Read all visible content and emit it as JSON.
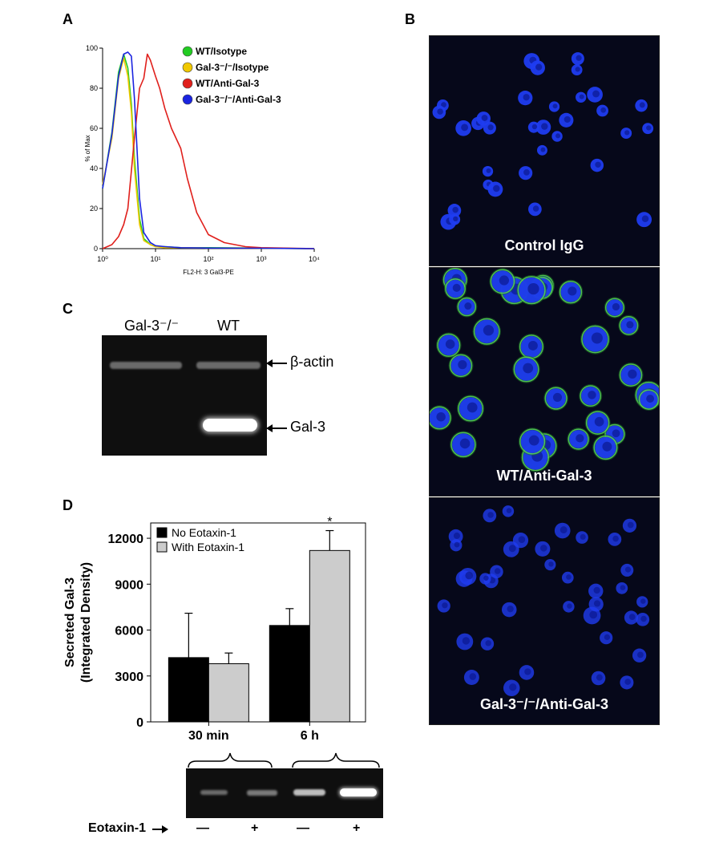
{
  "panels": {
    "a": {
      "label": "A",
      "chart_data": {
        "type": "line",
        "xlabel": "FL2-H: 3 Gal3-PE",
        "ylabel": "% of Max",
        "xscale": "log",
        "xlim": [
          1,
          10000
        ],
        "ylim": [
          0,
          100
        ],
        "x_tick_labels": [
          "10⁰",
          "10¹",
          "10²",
          "10³",
          "10⁴"
        ],
        "y_tick_labels": [
          "0",
          "20",
          "40",
          "60",
          "80",
          "100"
        ],
        "legend_position": "top-right",
        "series": [
          {
            "name": "WT/Isotype",
            "color": "#22cc22",
            "x": [
              1,
              1.5,
              2,
              2.5,
              3,
              3.5,
              4,
              5,
              6,
              8,
              10,
              15,
              30,
              100,
              1000,
              10000
            ],
            "y": [
              30,
              58,
              88,
              97,
              90,
              72,
              45,
              15,
              5,
              2,
              1,
              1,
              0.5,
              0.5,
              0.3,
              0
            ]
          },
          {
            "name": "Gal-3⁻/⁻/Isotype",
            "color": "#f0c800",
            "x": [
              1,
              1.5,
              2,
              2.5,
              3,
              3.5,
              4,
              5,
              6,
              8,
              10,
              15,
              30,
              100,
              1000,
              10000
            ],
            "y": [
              32,
              55,
              85,
              95,
              86,
              68,
              40,
              12,
              4,
              2,
              1,
              0.5,
              0.5,
              0.3,
              0.2,
              0
            ]
          },
          {
            "name": "WT/Anti-Gal-3",
            "color": "#e0201c",
            "x": [
              1,
              1.5,
              2,
              2.5,
              3,
              4,
              5,
              6,
              7,
              8,
              10,
              12,
              15,
              20,
              30,
              40,
              60,
              100,
              200,
              500,
              1000,
              10000
            ],
            "y": [
              0,
              2,
              6,
              12,
              20,
              55,
              80,
              85,
              97,
              94,
              86,
              80,
              70,
              60,
              50,
              35,
              18,
              7,
              3,
              1,
              0.5,
              0
            ]
          },
          {
            "name": "Gal-3⁻/⁻/Anti-Gal-3",
            "color": "#1a24e0",
            "x": [
              1,
              1.5,
              2,
              2.5,
              3,
              3.5,
              4,
              5,
              6,
              8,
              10,
              15,
              30,
              100,
              1000,
              10000
            ],
            "y": [
              30,
              57,
              86,
              97,
              98,
              96,
              75,
              25,
              8,
              3,
              1.5,
              1,
              0.5,
              0.3,
              0.2,
              0
            ]
          }
        ]
      }
    },
    "b": {
      "label": "B",
      "images": [
        {
          "caption": "Control IgG"
        },
        {
          "caption": "WT/Anti-Gal-3"
        },
        {
          "caption": "Gal-3⁻/⁻/Anti-Gal-3"
        }
      ]
    },
    "c": {
      "label": "C",
      "lanes": [
        "Gal-3⁻/⁻",
        "WT"
      ],
      "band_labels": [
        "β-actin",
        "Gal-3"
      ]
    },
    "d": {
      "label": "D",
      "chart_data": {
        "type": "bar",
        "categories": [
          "30 min",
          "6 h"
        ],
        "ylabel": "Secreted Gal-3 (Integrated Density)",
        "ylabel_lines": [
          "Secreted Gal-3",
          "(Integrated Density)"
        ],
        "ylim": [
          0,
          13000
        ],
        "y_ticks": [
          0,
          3000,
          6000,
          9000,
          12000
        ],
        "legend_position": "top-left",
        "series": [
          {
            "name": "No Eotaxin-1",
            "color": "#000000",
            "values": [
              4200,
              6300
            ],
            "errors": [
              2900,
              1100
            ]
          },
          {
            "name": "With Eotaxin-1",
            "color": "#cccccc",
            "values": [
              3800,
              11200
            ],
            "errors": [
              700,
              1300
            ]
          }
        ],
        "annotations": [
          {
            "category": "6 h",
            "series": "With Eotaxin-1",
            "text": "*"
          }
        ]
      },
      "blot": {
        "row_label": "Eotaxin-1",
        "lane_signs": [
          "—",
          "+",
          "—",
          "+"
        ]
      }
    }
  }
}
